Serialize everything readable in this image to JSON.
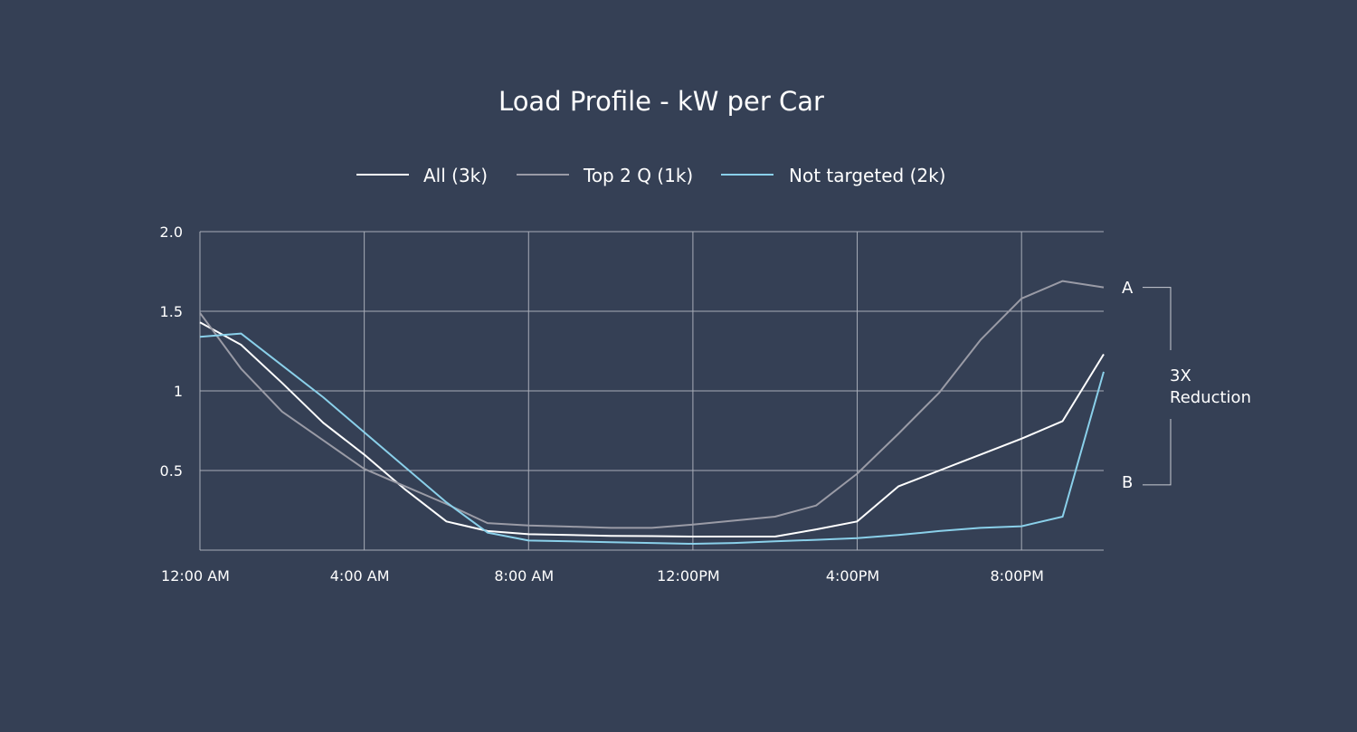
{
  "chart_data": {
    "type": "line",
    "title": "Load Profile - kW per Car",
    "xlabel": "",
    "ylabel": "",
    "x_hours": [
      0,
      1,
      2,
      3,
      4,
      5,
      6,
      7,
      8,
      9,
      10,
      11,
      12,
      13,
      14,
      15,
      16,
      17,
      18,
      19,
      20,
      21,
      22
    ],
    "xlim": [
      0,
      22
    ],
    "ylim": [
      0,
      2.0
    ],
    "x_ticks": [
      {
        "value": 0,
        "label": "12:00 AM"
      },
      {
        "value": 4,
        "label": "4:00 AM"
      },
      {
        "value": 8,
        "label": "8:00 AM"
      },
      {
        "value": 12,
        "label": "12:00PM"
      },
      {
        "value": 16,
        "label": "4:00PM"
      },
      {
        "value": 20,
        "label": "8:00PM"
      }
    ],
    "y_ticks": [
      {
        "value": 0.5,
        "label": "0.5"
      },
      {
        "value": 1,
        "label": "1"
      },
      {
        "value": 1.5,
        "label": "1.5"
      },
      {
        "value": 2.0,
        "label": "2.0"
      }
    ],
    "grid": true,
    "legend_position": "top-center",
    "series": [
      {
        "name": "All (3k)",
        "color": "#ffffff",
        "points": [
          [
            0,
            1.43
          ],
          [
            1,
            1.29
          ],
          [
            2,
            1.05
          ],
          [
            3,
            0.8
          ],
          [
            4,
            0.6
          ],
          [
            5,
            0.38
          ],
          [
            6,
            0.18
          ],
          [
            7,
            0.12
          ],
          [
            8,
            0.1
          ],
          [
            9,
            0.095
          ],
          [
            10,
            0.09
          ],
          [
            11,
            0.088
          ],
          [
            12,
            0.085
          ],
          [
            13,
            0.085
          ],
          [
            14,
            0.085
          ],
          [
            15,
            0.13
          ],
          [
            16,
            0.18
          ],
          [
            17,
            0.4
          ],
          [
            18,
            0.5
          ],
          [
            19,
            0.6
          ],
          [
            20,
            0.7
          ],
          [
            21,
            0.81
          ],
          [
            22,
            1.23
          ]
        ]
      },
      {
        "name": "Top 2 Q (1k)",
        "color": "#9a9ba6",
        "points": [
          [
            0,
            1.49
          ],
          [
            1,
            1.14
          ],
          [
            2,
            0.87
          ],
          [
            3,
            0.69
          ],
          [
            4,
            0.51
          ],
          [
            5,
            0.4
          ],
          [
            6,
            0.29
          ],
          [
            7,
            0.17
          ],
          [
            8,
            0.155
          ],
          [
            9,
            0.148
          ],
          [
            10,
            0.14
          ],
          [
            11,
            0.14
          ],
          [
            12,
            0.16
          ],
          [
            13,
            0.185
          ],
          [
            14,
            0.21
          ],
          [
            15,
            0.28
          ],
          [
            16,
            0.48
          ],
          [
            17,
            0.73
          ],
          [
            18,
            0.99
          ],
          [
            19,
            1.32
          ],
          [
            20,
            1.58
          ],
          [
            21,
            1.69
          ],
          [
            22,
            1.65
          ]
        ]
      },
      {
        "name": "Not targeted (2k)",
        "color": "#8ad0ea",
        "points": [
          [
            0,
            1.34
          ],
          [
            1,
            1.36
          ],
          [
            2,
            1.16
          ],
          [
            3,
            0.96
          ],
          [
            4,
            0.74
          ],
          [
            5,
            0.52
          ],
          [
            6,
            0.3
          ],
          [
            7,
            0.11
          ],
          [
            8,
            0.06
          ],
          [
            9,
            0.055
          ],
          [
            10,
            0.05
          ],
          [
            11,
            0.045
          ],
          [
            12,
            0.04
          ],
          [
            13,
            0.045
          ],
          [
            14,
            0.055
          ],
          [
            15,
            0.065
          ],
          [
            16,
            0.075
          ],
          [
            17,
            0.095
          ],
          [
            18,
            0.12
          ],
          [
            19,
            0.14
          ],
          [
            20,
            0.15
          ],
          [
            21,
            0.21
          ],
          [
            22,
            1.12
          ]
        ]
      }
    ],
    "annotations": {
      "label_a": "A",
      "label_b": "B",
      "label_a_value": 1.65,
      "label_b_value": 0.41,
      "reduction_line1": "3X",
      "reduction_line2": "Reduction"
    }
  }
}
